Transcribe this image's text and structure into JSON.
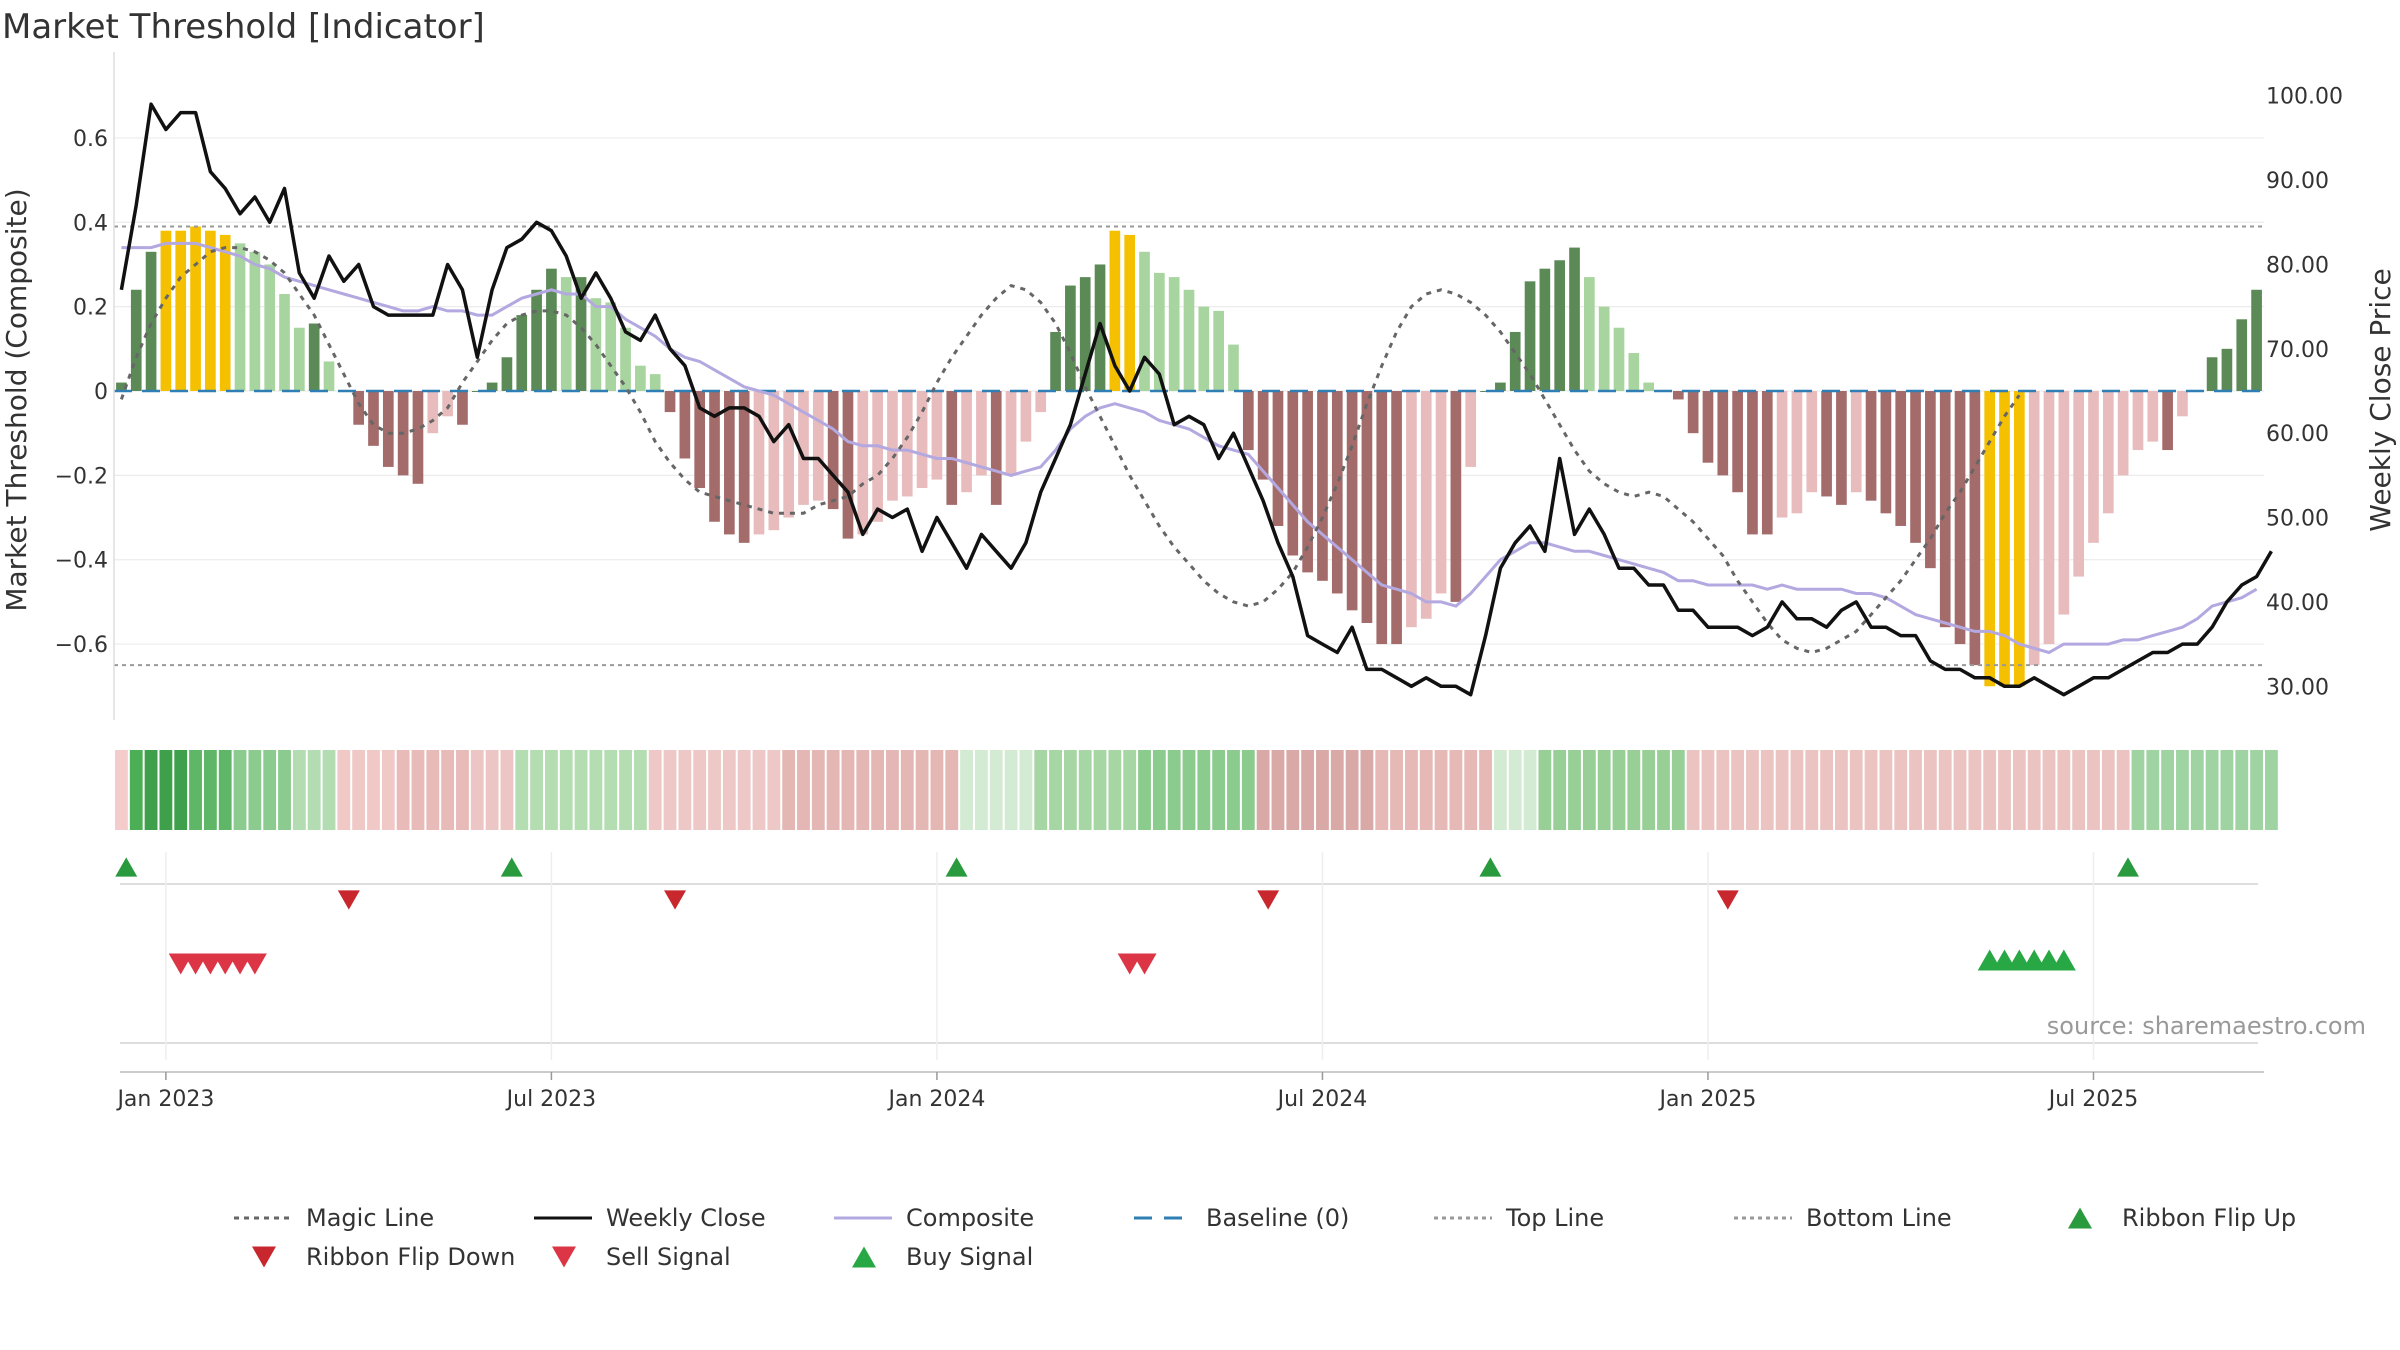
{
  "chart_data": {
    "type": "bar+line",
    "title": "Market Threshold [Indicator]",
    "ylabel_left": "Market Threshold (Composite)",
    "ylabel_right": "Weekly Close Price",
    "ylim_left": [
      -0.78,
      0.78
    ],
    "ylim_right": [
      26,
      104
    ],
    "left_ticks": [
      {
        "v": 0.6,
        "label": "0.6"
      },
      {
        "v": 0.4,
        "label": "0.4"
      },
      {
        "v": 0.2,
        "label": "0.2"
      },
      {
        "v": 0,
        "label": "0"
      },
      {
        "v": -0.2,
        "label": "−0.2"
      },
      {
        "v": -0.4,
        "label": "−0.4"
      },
      {
        "v": -0.6,
        "label": "−0.6"
      }
    ],
    "right_ticks": [
      {
        "v": 100,
        "label": "100.00"
      },
      {
        "v": 90,
        "label": "90.00"
      },
      {
        "v": 80,
        "label": "80.00"
      },
      {
        "v": 70,
        "label": "70.00"
      },
      {
        "v": 60,
        "label": "60.00"
      },
      {
        "v": 50,
        "label": "50.00"
      },
      {
        "v": 40,
        "label": "40.00"
      },
      {
        "v": 30,
        "label": "30.00"
      }
    ],
    "x_ticks": [
      {
        "i": 3,
        "label": "Jan 2023"
      },
      {
        "i": 29,
        "label": "Jul 2023"
      },
      {
        "i": 55,
        "label": "Jan 2024"
      },
      {
        "i": 81,
        "label": "Jul 2024"
      },
      {
        "i": 107,
        "label": "Jan 2025"
      },
      {
        "i": 133,
        "label": "Jul 2025"
      }
    ],
    "top_line": 0.39,
    "bottom_line": -0.65,
    "composite_bars": [
      0.02,
      0.24,
      0.33,
      0.38,
      0.38,
      0.39,
      0.38,
      0.37,
      0.35,
      0.33,
      0.3,
      0.23,
      0.15,
      0.16,
      0.07,
      0,
      -0.08,
      -0.13,
      -0.18,
      -0.2,
      -0.22,
      -0.1,
      -0.06,
      -0.08,
      0,
      0.02,
      0.08,
      0.18,
      0.24,
      0.29,
      0.27,
      0.27,
      0.22,
      0.21,
      0.15,
      0.06,
      0.04,
      -0.05,
      -0.16,
      -0.23,
      -0.31,
      -0.34,
      -0.36,
      -0.34,
      -0.33,
      -0.3,
      -0.27,
      -0.26,
      -0.28,
      -0.35,
      -0.34,
      -0.31,
      -0.26,
      -0.25,
      -0.23,
      -0.21,
      -0.27,
      -0.24,
      -0.2,
      -0.27,
      -0.2,
      -0.12,
      -0.05,
      0.14,
      0.25,
      0.27,
      0.3,
      0.38,
      0.37,
      0.33,
      0.28,
      0.27,
      0.24,
      0.2,
      0.19,
      0.11,
      -0.14,
      -0.21,
      -0.32,
      -0.39,
      -0.43,
      -0.45,
      -0.48,
      -0.52,
      -0.55,
      -0.6,
      -0.6,
      -0.56,
      -0.54,
      -0.48,
      -0.5,
      -0.18,
      0,
      0.02,
      0.14,
      0.26,
      0.29,
      0.31,
      0.34,
      0.27,
      0.2,
      0.15,
      0.09,
      0.02,
      0,
      -0.02,
      -0.1,
      -0.17,
      -0.2,
      -0.24,
      -0.34,
      -0.34,
      -0.3,
      -0.29,
      -0.24,
      -0.25,
      -0.27,
      -0.24,
      -0.26,
      -0.29,
      -0.32,
      -0.36,
      -0.42,
      -0.56,
      -0.6,
      -0.65,
      -0.7,
      -0.7,
      -0.7,
      -0.65,
      -0.6,
      -0.53,
      -0.44,
      -0.36,
      -0.29,
      -0.2,
      -0.14,
      -0.12,
      -0.14,
      -0.06,
      0,
      0.08,
      0.1,
      0.17,
      0.24
    ],
    "composite_line": [
      0.34,
      0.34,
      0.34,
      0.35,
      0.35,
      0.35,
      0.34,
      0.33,
      0.32,
      0.3,
      0.29,
      0.27,
      0.26,
      0.25,
      0.24,
      0.23,
      0.22,
      0.21,
      0.2,
      0.19,
      0.19,
      0.2,
      0.19,
      0.19,
      0.18,
      0.18,
      0.2,
      0.22,
      0.23,
      0.24,
      0.23,
      0.23,
      0.2,
      0.2,
      0.17,
      0.15,
      0.13,
      0.1,
      0.08,
      0.07,
      0.05,
      0.03,
      0.01,
      0,
      -0.01,
      -0.03,
      -0.05,
      -0.07,
      -0.09,
      -0.12,
      -0.13,
      -0.13,
      -0.14,
      -0.14,
      -0.15,
      -0.16,
      -0.16,
      -0.17,
      -0.18,
      -0.19,
      -0.2,
      -0.19,
      -0.18,
      -0.14,
      -0.09,
      -0.06,
      -0.04,
      -0.03,
      -0.04,
      -0.05,
      -0.07,
      -0.08,
      -0.09,
      -0.11,
      -0.13,
      -0.14,
      -0.15,
      -0.19,
      -0.23,
      -0.27,
      -0.31,
      -0.34,
      -0.37,
      -0.4,
      -0.43,
      -0.46,
      -0.47,
      -0.48,
      -0.5,
      -0.5,
      -0.51,
      -0.48,
      -0.44,
      -0.4,
      -0.38,
      -0.36,
      -0.36,
      -0.37,
      -0.38,
      -0.38,
      -0.39,
      -0.4,
      -0.41,
      -0.42,
      -0.43,
      -0.45,
      -0.45,
      -0.46,
      -0.46,
      -0.46,
      -0.46,
      -0.47,
      -0.46,
      -0.47,
      -0.47,
      -0.47,
      -0.47,
      -0.48,
      -0.48,
      -0.49,
      -0.51,
      -0.53,
      -0.54,
      -0.55,
      -0.56,
      -0.57,
      -0.57,
      -0.58,
      -0.6,
      -0.61,
      -0.62,
      -0.6,
      -0.6,
      -0.6,
      -0.6,
      -0.59,
      -0.59,
      -0.58,
      -0.57,
      -0.56,
      -0.54,
      -0.51,
      -0.5,
      -0.49,
      -0.47
    ],
    "magic_line": [
      -0.02,
      0.08,
      0.16,
      0.22,
      0.27,
      0.3,
      0.33,
      0.34,
      0.34,
      0.33,
      0.31,
      0.28,
      0.23,
      0.18,
      0.11,
      0.04,
      -0.03,
      -0.08,
      -0.1,
      -0.1,
      -0.09,
      -0.07,
      -0.04,
      0.02,
      0.07,
      0.12,
      0.16,
      0.18,
      0.19,
      0.19,
      0.18,
      0.15,
      0.11,
      0.06,
      0.01,
      -0.05,
      -0.12,
      -0.17,
      -0.21,
      -0.24,
      -0.25,
      -0.26,
      -0.27,
      -0.28,
      -0.29,
      -0.29,
      -0.29,
      -0.27,
      -0.26,
      -0.25,
      -0.22,
      -0.2,
      -0.16,
      -0.11,
      -0.05,
      0.02,
      0.08,
      0.13,
      0.18,
      0.22,
      0.25,
      0.24,
      0.21,
      0.16,
      0.09,
      0.01,
      -0.06,
      -0.13,
      -0.2,
      -0.26,
      -0.32,
      -0.37,
      -0.41,
      -0.45,
      -0.48,
      -0.5,
      -0.51,
      -0.5,
      -0.47,
      -0.43,
      -0.37,
      -0.3,
      -0.22,
      -0.13,
      -0.03,
      0.06,
      0.14,
      0.2,
      0.23,
      0.24,
      0.23,
      0.21,
      0.18,
      0.14,
      0.09,
      0.04,
      -0.02,
      -0.08,
      -0.14,
      -0.19,
      -0.22,
      -0.24,
      -0.25,
      -0.24,
      -0.25,
      -0.28,
      -0.31,
      -0.35,
      -0.39,
      -0.45,
      -0.5,
      -0.55,
      -0.59,
      -0.61,
      -0.62,
      -0.61,
      -0.59,
      -0.57,
      -0.53,
      -0.49,
      -0.45,
      -0.4,
      -0.35,
      -0.29,
      -0.24,
      -0.18,
      -0.12,
      -0.06,
      -0.01
    ],
    "weekly_close": [
      77,
      87,
      99,
      96,
      98,
      98,
      91,
      89,
      86,
      88,
      85,
      89,
      79,
      76,
      81,
      78,
      80,
      75,
      74,
      74,
      74,
      74,
      80,
      77,
      69,
      77,
      82,
      83,
      85,
      84,
      81,
      76,
      79,
      76,
      72,
      71,
      74,
      70,
      68,
      63,
      62,
      63,
      63,
      62,
      59,
      61,
      57,
      57,
      55,
      53,
      48,
      51,
      50,
      51,
      46,
      50,
      47,
      44,
      48,
      46,
      44,
      47,
      53,
      57,
      61,
      67,
      73,
      68,
      65,
      69,
      67,
      61,
      62,
      61,
      57,
      60,
      56,
      52,
      47,
      43,
      36,
      35,
      34,
      37,
      32,
      32,
      31,
      30,
      31,
      30,
      30,
      29,
      36,
      44,
      47,
      49,
      46,
      57,
      48,
      51,
      48,
      44,
      44,
      42,
      42,
      39,
      39,
      37,
      37,
      37,
      36,
      37,
      40,
      38,
      38,
      37,
      39,
      40,
      37,
      37,
      36,
      36,
      33,
      32,
      32,
      31,
      31,
      30,
      30,
      31,
      30,
      29,
      30,
      31,
      31,
      32,
      33,
      34,
      34,
      35,
      35,
      37,
      40,
      42,
      43,
      46
    ],
    "bar_colors": {
      "strong_up": "#5c8a57",
      "weak_up": "#a8d4a0",
      "strong_down": "#a46b6b",
      "weak_down": "#e8bcbc",
      "extreme": "#f5c000"
    },
    "ribbon_segments": [
      {
        "start": 0,
        "end": 0,
        "color": "#f4cccc"
      },
      {
        "start": 1,
        "end": 1,
        "color": "#4daf55"
      },
      {
        "start": 2,
        "end": 4,
        "color": "#3ea04a"
      },
      {
        "start": 5,
        "end": 7,
        "color": "#5eb666"
      },
      {
        "start": 8,
        "end": 11,
        "color": "#8ccb8f"
      },
      {
        "start": 12,
        "end": 14,
        "color": "#b3dcb2"
      },
      {
        "start": 15,
        "end": 18,
        "color": "#f0c8c6"
      },
      {
        "start": 19,
        "end": 23,
        "color": "#e8bbb9"
      },
      {
        "start": 24,
        "end": 26,
        "color": "#ecc6c4"
      },
      {
        "start": 27,
        "end": 35,
        "color": "#b4ddb2"
      },
      {
        "start": 36,
        "end": 44,
        "color": "#edc8c6"
      },
      {
        "start": 45,
        "end": 56,
        "color": "#e4b6b4"
      },
      {
        "start": 57,
        "end": 61,
        "color": "#d4ebd3"
      },
      {
        "start": 62,
        "end": 68,
        "color": "#a6d6a4"
      },
      {
        "start": 69,
        "end": 76,
        "color": "#8ccb8e"
      },
      {
        "start": 77,
        "end": 84,
        "color": "#d9a9a7"
      },
      {
        "start": 85,
        "end": 92,
        "color": "#e6b8b6"
      },
      {
        "start": 93,
        "end": 95,
        "color": "#d4ebd3"
      },
      {
        "start": 96,
        "end": 105,
        "color": "#97cf97"
      },
      {
        "start": 106,
        "end": 135,
        "color": "#ebc4c2"
      },
      {
        "start": 136,
        "end": 145,
        "color": "#9fd3a2"
      }
    ],
    "ribbon_flip_up": [
      1,
      27,
      57,
      93,
      136
    ],
    "ribbon_flip_down": [
      15,
      37,
      77,
      108
    ],
    "sell_signals": [
      4,
      5,
      6,
      7,
      8,
      9,
      68,
      69
    ],
    "buy_signals": [
      126,
      127,
      128,
      129,
      130,
      131
    ],
    "source_text": "source: sharemaestro.com",
    "legend": [
      {
        "label": "Magic Line",
        "kind": "dotted",
        "color": "#666666"
      },
      {
        "label": "Weekly Close",
        "kind": "solid",
        "color": "#111111"
      },
      {
        "label": "Composite",
        "kind": "solid",
        "color": "#b3a8e0"
      },
      {
        "label": "Baseline (0)",
        "kind": "dashed",
        "color": "#2f7fb5"
      },
      {
        "label": "Top Line",
        "kind": "dotted-fine",
        "color": "#999999"
      },
      {
        "label": "Bottom Line",
        "kind": "dotted-fine",
        "color": "#999999"
      },
      {
        "label": "Ribbon Flip Up",
        "kind": "triangle-up",
        "color": "#2a9a3f"
      },
      {
        "label": "Ribbon Flip Down",
        "kind": "triangle-down",
        "color": "#c8282d"
      },
      {
        "label": "Sell Signal",
        "kind": "triangle-down",
        "color": "#dc3545"
      },
      {
        "label": "Buy Signal",
        "kind": "triangle-up",
        "color": "#28a745"
      }
    ]
  }
}
